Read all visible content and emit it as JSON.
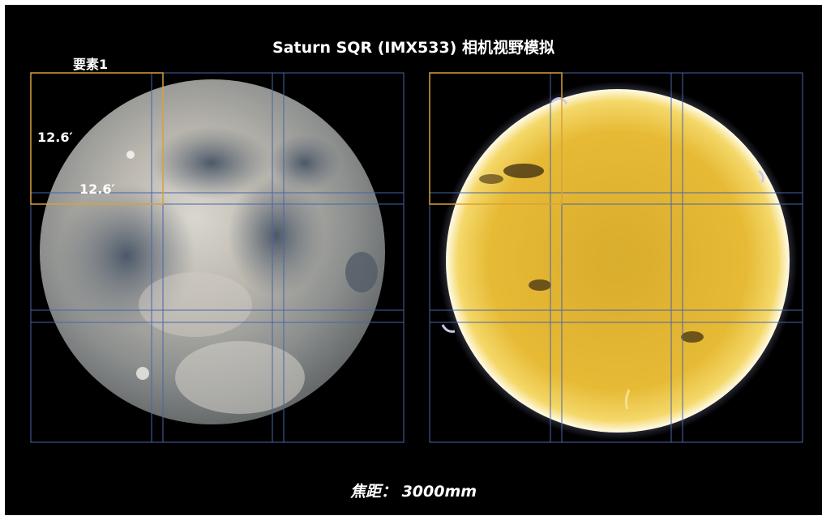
{
  "title": "Saturn SQR (IMX533) 相机视野模拟",
  "element_label": "要素1",
  "fov": {
    "width_label": "12.6′",
    "height_label": "12.6′"
  },
  "footer": {
    "label": "焦距：",
    "value": "3000mm"
  },
  "colors": {
    "background": "#000000",
    "grid": "#4a64a8",
    "highlight_frame": "#d8a13a",
    "text": "#ffffff"
  }
}
